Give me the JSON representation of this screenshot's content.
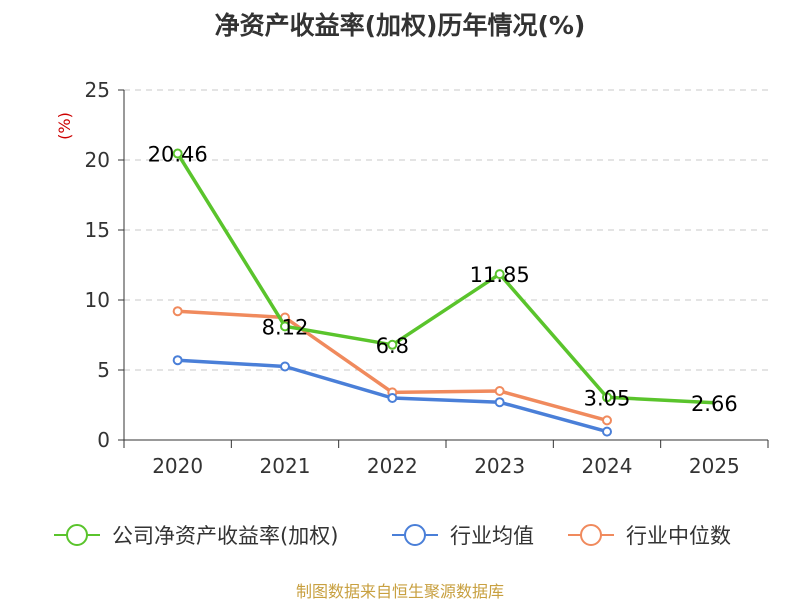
{
  "title": "净资产收益率(加权)历年情况(%)",
  "footer": "制图数据来自恒生聚源数据库",
  "chart_data": {
    "type": "line",
    "categories": [
      "2020",
      "2021",
      "2022",
      "2023",
      "2024",
      "2025"
    ],
    "ylim": [
      0,
      25
    ],
    "yticks": [
      0,
      5,
      10,
      15,
      20,
      25
    ],
    "yunit": "(%)",
    "grid": "horizontal dashed",
    "legend_position": "bottom",
    "series": [
      {
        "name": "公司净资产收益率(加权)",
        "color": "#5ac42c",
        "values": [
          20.46,
          8.12,
          6.8,
          11.85,
          3.05,
          2.66
        ],
        "labels": [
          "20.46",
          "8.12",
          "6.8",
          "11.85",
          "3.05",
          "2.66"
        ],
        "markers": [
          true,
          true,
          true,
          true,
          true,
          false
        ]
      },
      {
        "name": "行业均值",
        "color": "#4a7fd8",
        "values": [
          5.7,
          5.25,
          3.0,
          2.7,
          0.6,
          null
        ]
      },
      {
        "name": "行业中位数",
        "color": "#f08a5d",
        "values": [
          9.2,
          8.75,
          3.4,
          3.5,
          1.4,
          null
        ]
      }
    ]
  }
}
